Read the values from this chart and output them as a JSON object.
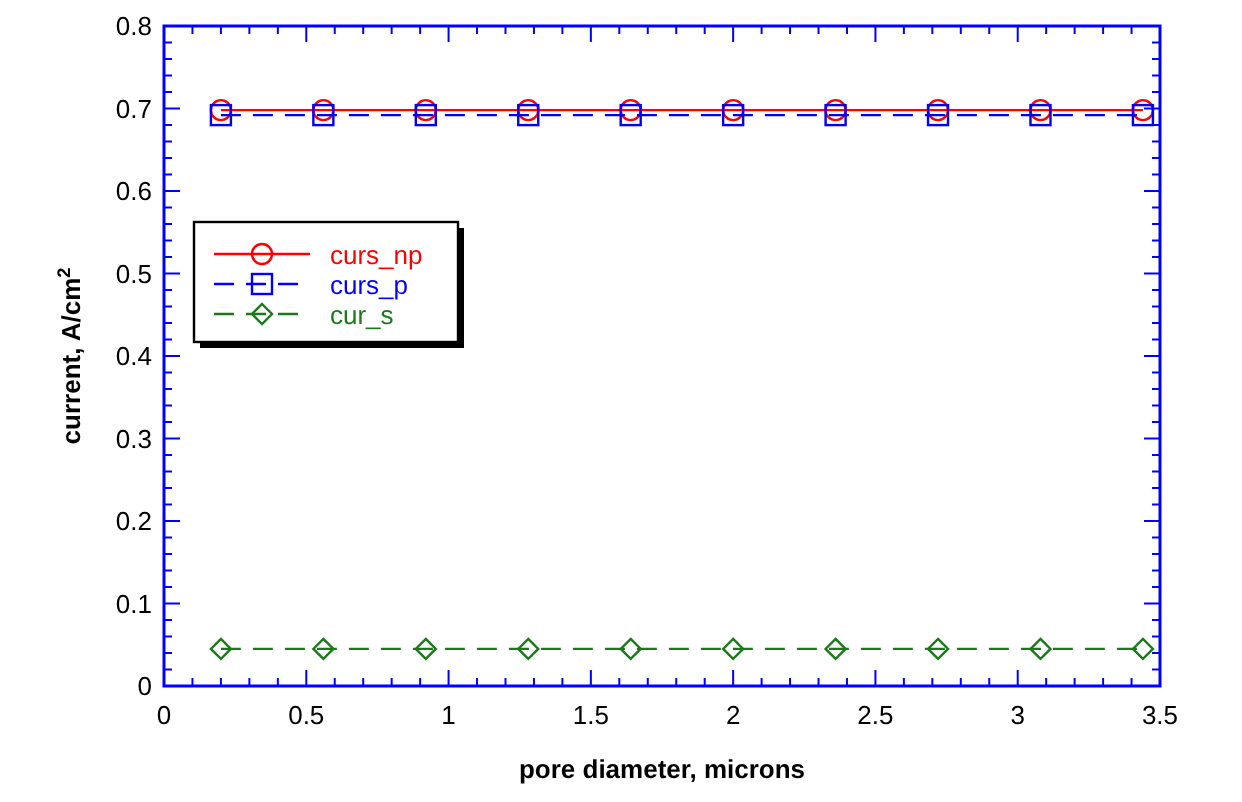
{
  "chart_data": {
    "type": "line",
    "xlabel": "pore diameter, microns",
    "ylabel": "current, A/cm$^{2}$",
    "x": [
      0.2,
      0.56,
      0.92,
      1.28,
      1.64,
      2.0,
      2.36,
      2.72,
      3.08,
      3.44
    ],
    "series": [
      {
        "name": "curs_np",
        "color": "#ff0000",
        "marker": "circle",
        "line_style": "solid",
        "values": [
          0.698,
          0.698,
          0.698,
          0.698,
          0.698,
          0.698,
          0.698,
          0.698,
          0.698,
          0.698
        ]
      },
      {
        "name": "curs_p",
        "color": "#0000ff",
        "marker": "square",
        "line_style": "dashed",
        "values": [
          0.692,
          0.692,
          0.692,
          0.692,
          0.692,
          0.692,
          0.692,
          0.692,
          0.692,
          0.692
        ]
      },
      {
        "name": "cur_s",
        "color": "#1a7a1a",
        "marker": "diamond",
        "line_style": "dashed",
        "values": [
          0.045,
          0.045,
          0.045,
          0.045,
          0.045,
          0.045,
          0.045,
          0.045,
          0.045,
          0.045
        ]
      }
    ],
    "xlim": [
      0,
      3.5
    ],
    "xticks": [
      0,
      0.5,
      1,
      1.5,
      2,
      2.5,
      3,
      3.5
    ],
    "ylim": [
      0,
      0.8
    ],
    "yticks": [
      0,
      0.1,
      0.2,
      0.3,
      0.4,
      0.5,
      0.6,
      0.7,
      0.8
    ],
    "grid": false,
    "legend": "left"
  }
}
